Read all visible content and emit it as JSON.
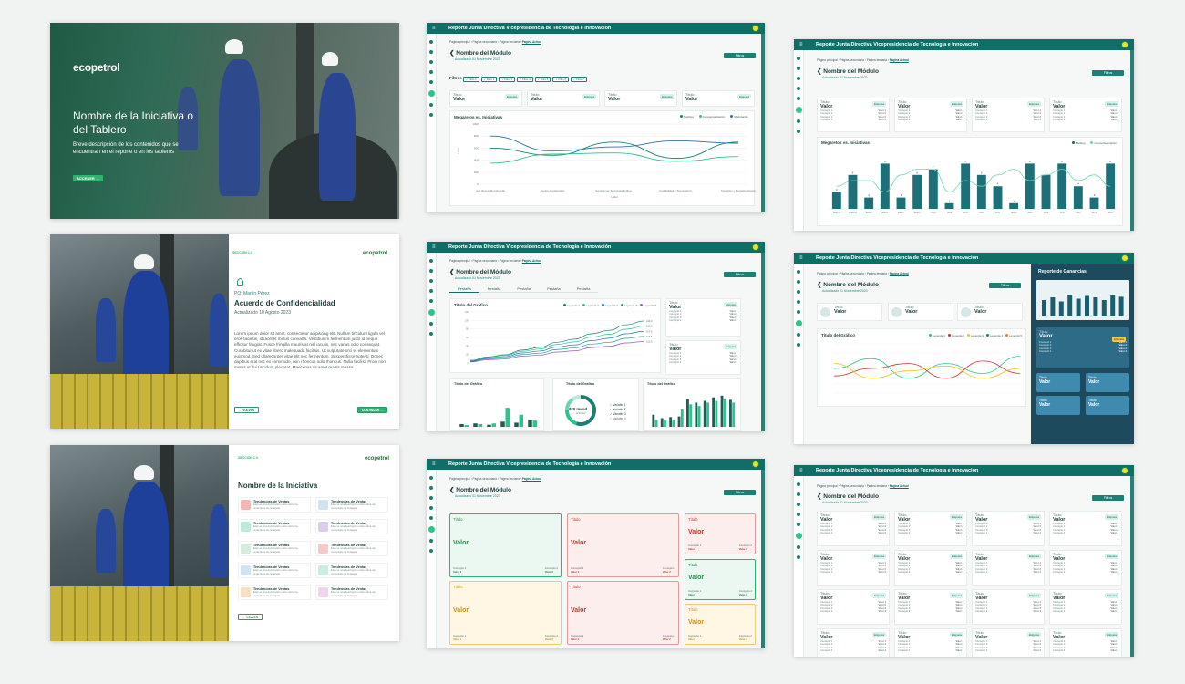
{
  "cover": {
    "brand": "ecopetrol",
    "title": "Nombre de la Iniciativa o del Tablero",
    "description": "Breve descripción de los contenidos que se encuentran en el reporte o en los tableros",
    "button": "ACCEDER →"
  },
  "agreement": {
    "section": "SECCIÓN 1.0",
    "brand": "ecopetrol",
    "owner": "PO: Martín Pérez",
    "title": "Acuerdo de Confidencialidad",
    "updated": "Actualizado 10 Agosto 2023",
    "body_a": "Lorem ipsum dolor sit amet, consectetur adipiscing elit. Nullam tincidunt ligula vel eros facilisis, id laoreet metus convallis. Vestibulum fermentum justo id neque efficitur feugiat. Fusce fringilla mauris at nisl iaculis, nec varius odio consequat. Curabitur ut ex vitae libero malesuada facilisis. Ut vulputate orci et elementum euismod. Sed ullamcorper vitae elit nec fermentum.",
    "body_em": "Suspendisse potenti.",
    "body_b": "Donec dapibus erat nec ex commodo, non rhoncus odio rhoncus. Nulla facilisi. Proin non metus at dui tincidunt placerat. Maecenas sit amet mattis massa.",
    "back": "← VOLVER",
    "continue": "CONTINUAR →"
  },
  "initiative": {
    "section": "SECCIÓN 1.0",
    "brand": "ecopetrol",
    "title": "Nombre de la Iniciativa",
    "item_title": "Tendencias de Ventas",
    "item_desc": "Esta es una descripción corta sobre los contenidos de la tarjeta",
    "icon_colors": [
      "#f2b8b8",
      "#cfe3f0",
      "#bfe9d7",
      "#d9cdea",
      "#d6ecdf",
      "#f6c9c9",
      "#cfe3f0",
      "#c9ece3",
      "#f8e0c4",
      "#eed5ec"
    ],
    "back": "← VOLVER"
  },
  "header": {
    "title": "Reporte Junta Directiva Vicepresidencia de Tecnología e Innovación",
    "crumb1": "Página principal",
    "crumb2": "Página secundaria",
    "crumb3": "Página terciaria",
    "crumb_active": "Página Actual",
    "module": "Nombre del Módulo",
    "updated": "Actualizado 01 Noviembre 2023",
    "filters": "Filtros"
  },
  "kpi": {
    "title": "Título",
    "value": "Valor",
    "tag": "Etiqueta",
    "concept": "Concepto",
    "value_short": "Valor"
  },
  "s1": {
    "filters_label": "Filtros",
    "chips": [
      "✓ Filtro 1",
      "✓ Filtro 2",
      "✓ Filtro 3",
      "✓ Filtro 4",
      "✓ Filtro 5",
      "✓ Filtro 6",
      "✓ Filtro 7"
    ],
    "chart_title": "Megaretos vs. Iniciativas",
    "legend": [
      "Backlog",
      "Conceptualización",
      "Maduración"
    ],
    "y_ticks": [
      "1000",
      "800",
      "600",
      "400",
      "200",
      "0"
    ],
    "x_labels": [
      "Gas Renovable Industrial",
      "Nombre Renderizado",
      "Servicios de Tecnología de Beg...",
      "Confiabilidad y Tecnología D...",
      "Transición y Descarbonización"
    ],
    "xlabel": "Label",
    "ylabel": "Label"
  },
  "s2": {
    "tabs": [
      "Pestaña",
      "Pestaña",
      "Pestaña",
      "Pestaña",
      "Pestaña"
    ],
    "line_title": "Título del Gráfico",
    "line_legend": [
      "Leyenda 1",
      "Leyenda 2",
      "Leyenda 3",
      "Leyenda 4",
      "Leyenda 5"
    ],
    "donut_value": "300 musd",
    "donut_sub": "Indicador",
    "donut_legend": [
      "Variable 1",
      "Variable 2",
      "Variable 3",
      "Variable 4"
    ],
    "bar_title": "Título del Gráfico"
  },
  "s3": {
    "color_boxes": [
      "Título",
      "Título",
      "Título",
      "Título",
      "Título",
      "Título",
      "Título"
    ],
    "c1": "Concepto 1",
    "c2": "Concepto 2",
    "v1": "Valor 1",
    "v2": "Valor 2"
  },
  "r1": {
    "chart_title": "Megaretos vs. Iniciativas",
    "legend": [
      "Backlog",
      "Conceptualización"
    ]
  },
  "r2": {
    "chart_title": "Título del Gráfico",
    "legend": [
      "Leyenda 1",
      "Leyenda 2",
      "Leyenda 3",
      "Leyenda 4",
      "Leyenda 5"
    ],
    "aside_title": "Reporte de Ganancias",
    "highlight": "Etiqueta"
  },
  "chart_data": [
    {
      "type": "line",
      "title": "Megaretos vs. Iniciativas",
      "categories": [
        "Gas Renovable Industrial",
        "Nombre Renderizado",
        "Servicios de Tecnología de Beg...",
        "Confiabilidad y Tecnología D...",
        "Transición y Descarbonización"
      ],
      "series": [
        {
          "name": "Backlog",
          "values": [
            600,
            480,
            700,
            430,
            700
          ]
        },
        {
          "name": "Conceptualización",
          "values": [
            350,
            500,
            520,
            380,
            460
          ]
        },
        {
          "name": "Maduración",
          "values": [
            800,
            550,
            620,
            720,
            680
          ]
        }
      ],
      "ylim": [
        0,
        1000
      ],
      "xlabel": "Label",
      "ylabel": "Label"
    },
    {
      "type": "bar",
      "title": "Megaretos vs. Iniciativas",
      "categories": [
        "Enero",
        "Febrero",
        "Enero",
        "Enero",
        "Enero",
        "Enero",
        "Abril",
        "Abril",
        "Abril",
        "Abril",
        "Abril",
        "Mayo",
        "Abril",
        "Abril",
        "Abril",
        "Abril",
        "Abril",
        "Abril"
      ],
      "series": [
        {
          "name": "Backlog",
          "values": [
            3,
            6,
            2,
            8,
            2,
            6,
            7,
            1,
            8,
            6,
            4,
            1,
            8,
            6,
            8,
            4,
            2,
            8
          ]
        },
        {
          "name": "Conceptualización",
          "values": [
            4,
            5,
            5,
            3,
            6,
            7,
            7,
            3,
            5,
            4,
            6,
            7,
            5,
            6,
            7,
            5,
            6,
            4
          ]
        }
      ],
      "ylim": [
        0,
        10
      ]
    }
  ]
}
